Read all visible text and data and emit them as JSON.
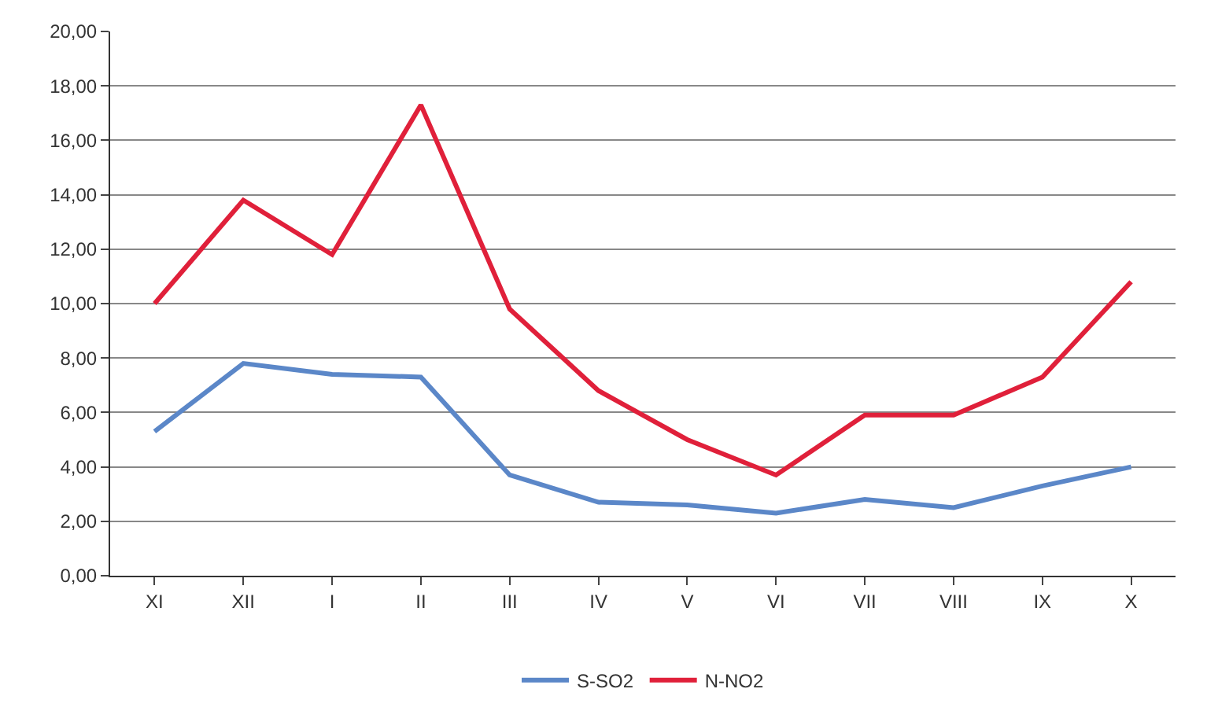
{
  "chart_data": {
    "type": "line",
    "categories": [
      "XI",
      "XII",
      "I",
      "II",
      "III",
      "IV",
      "V",
      "VI",
      "VII",
      "VIII",
      "IX",
      "X"
    ],
    "series": [
      {
        "name": "S-SO2",
        "color": "#5b87c8",
        "values": [
          5.3,
          7.8,
          7.4,
          7.3,
          3.7,
          2.7,
          2.6,
          2.3,
          2.8,
          2.5,
          3.3,
          4.0
        ]
      },
      {
        "name": "N-NO2",
        "color": "#e0203a",
        "values": [
          10.0,
          13.8,
          11.8,
          17.3,
          9.8,
          6.8,
          5.0,
          3.7,
          5.9,
          5.9,
          7.3,
          10.8
        ]
      }
    ],
    "ylim": [
      0,
      20
    ],
    "yticks": [
      {
        "value": 0,
        "label": "0,00"
      },
      {
        "value": 2,
        "label": "2,00"
      },
      {
        "value": 4,
        "label": "4,00"
      },
      {
        "value": 6,
        "label": "6,00"
      },
      {
        "value": 8,
        "label": "8,00"
      },
      {
        "value": 10,
        "label": "10,00"
      },
      {
        "value": 12,
        "label": "12,00"
      },
      {
        "value": 14,
        "label": "14,00"
      },
      {
        "value": 16,
        "label": "16,00"
      },
      {
        "value": 18,
        "label": "18,00"
      },
      {
        "value": 20,
        "label": "20,00"
      }
    ],
    "grid": "y",
    "legend": "bottom",
    "marker": "none",
    "line_style": "solid"
  }
}
